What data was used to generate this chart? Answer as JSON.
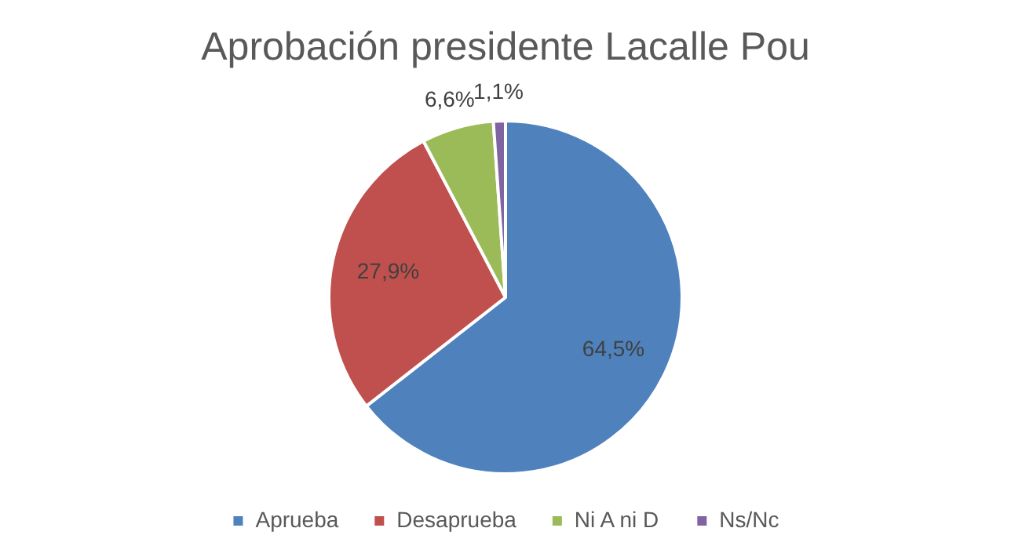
{
  "chart_data": {
    "type": "pie",
    "title": "Aprobación presidente Lacalle Pou",
    "categories": [
      "Aprueba",
      "Desaprueba",
      "Ni A ni D",
      "Ns/Nc"
    ],
    "values": [
      64.5,
      27.9,
      6.6,
      1.1
    ],
    "colors": [
      "#4f81bd",
      "#c0504d",
      "#9bbb59",
      "#8064a2"
    ],
    "value_labels": [
      "64,5%",
      "27,9%",
      "6,6%",
      "1,1%"
    ],
    "legend": "bottom"
  }
}
